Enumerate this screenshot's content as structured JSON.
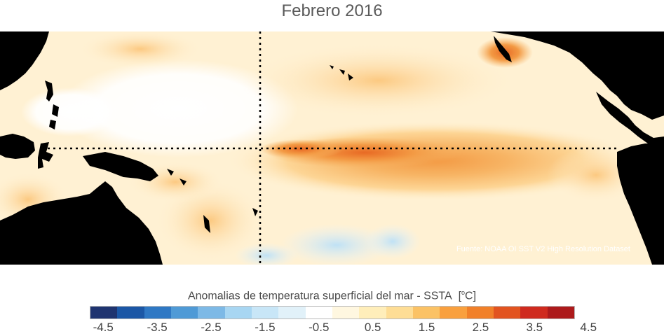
{
  "title": "Febrero 2016",
  "source": "Fuente: NOAA OI SST V2 High Resolution Dataset",
  "colorbar": {
    "title": "Anomalias de temperatura superficial del mar - SSTA",
    "unit_prefix": "[",
    "unit_sup": "o",
    "unit_suffix": "C]",
    "colors": [
      "#1f3470",
      "#1b57a6",
      "#2f78c4",
      "#4f9ad6",
      "#7db9e6",
      "#a8d6f2",
      "#c8e6f7",
      "#e1f1f9",
      "#ffffff",
      "#fff7e0",
      "#ffeeba",
      "#fedd95",
      "#fbc265",
      "#f9a03e",
      "#f18029",
      "#e25420",
      "#cf2a1e",
      "#ad1a1b"
    ],
    "ticks": [
      "-4.5",
      "-3.5",
      "-2.5",
      "-1.5",
      "-0.5",
      "0.5",
      "1.5",
      "2.5",
      "3.5",
      "4.5"
    ]
  }
}
